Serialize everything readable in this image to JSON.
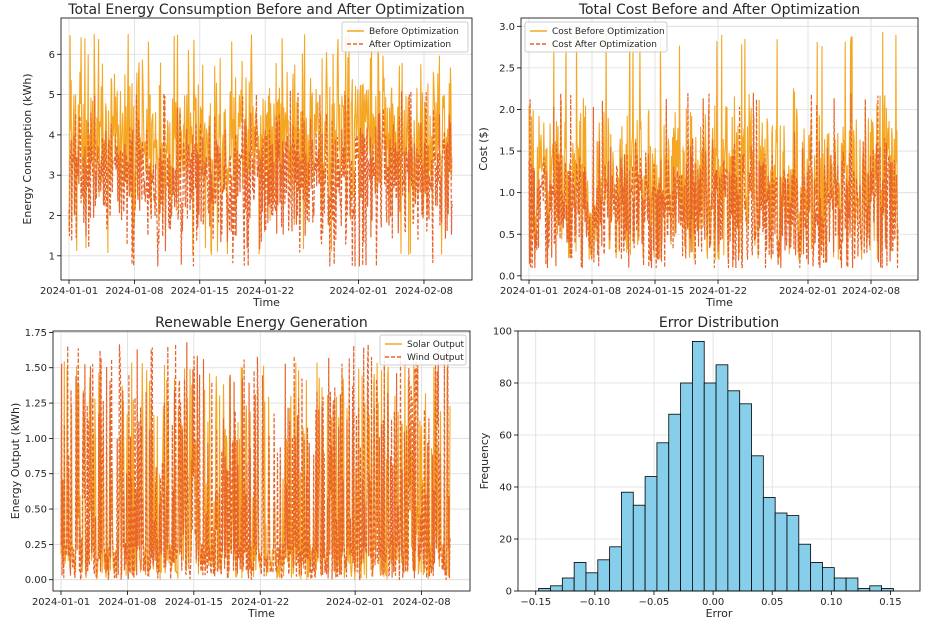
{
  "chart_data": [
    {
      "type": "line",
      "title": "Total Energy Consumption Before and After Optimization",
      "xlabel": "Time",
      "ylabel": "Energy Consumption (kWh)",
      "x_range": [
        "2024-01-01",
        "2024-02-11"
      ],
      "ylim": [
        0.4,
        6.9
      ],
      "x_ticks": [
        "2024-01-01",
        "2024-01-08",
        "2024-01-15",
        "2024-01-22",
        "2024-02-01",
        "2024-02-08"
      ],
      "y_ticks": [
        1,
        2,
        3,
        4,
        5,
        6
      ],
      "grid": true,
      "legend_position": "top-right",
      "series": [
        {
          "name": "Before Optimization",
          "color": "#f5a623",
          "style": "solid",
          "mean": 3.8,
          "min": 1.0,
          "max": 6.5
        },
        {
          "name": "After Optimization",
          "color": "#e8642d",
          "style": "dashed",
          "mean": 3.3,
          "min": 0.75,
          "max": 5.8
        }
      ]
    },
    {
      "type": "line",
      "title": "Total Cost Before and After Optimization",
      "xlabel": "Time",
      "ylabel": "Cost ($)",
      "x_range": [
        "2024-01-01",
        "2024-02-11"
      ],
      "ylim": [
        -0.05,
        3.1
      ],
      "x_ticks": [
        "2024-01-01",
        "2024-01-08",
        "2024-01-15",
        "2024-01-22",
        "2024-02-01",
        "2024-02-08"
      ],
      "y_ticks": [
        0.0,
        0.5,
        1.0,
        1.5,
        2.0,
        2.5,
        3.0
      ],
      "grid": true,
      "legend_position": "top-left",
      "series": [
        {
          "name": "Cost Before Optimization",
          "color": "#f5a623",
          "style": "solid",
          "mean": 1.1,
          "min": 0.2,
          "max": 2.95
        },
        {
          "name": "Cost After Optimization",
          "color": "#e8642d",
          "style": "dashed",
          "mean": 0.95,
          "min": 0.1,
          "max": 2.5
        }
      ]
    },
    {
      "type": "line",
      "title": "Renewable Energy Generation",
      "xlabel": "Time",
      "ylabel": "Energy Output (kWh)",
      "x_range": [
        "2024-01-01",
        "2024-02-11"
      ],
      "ylim": [
        -0.08,
        1.76
      ],
      "x_ticks": [
        "2024-01-01",
        "2024-01-08",
        "2024-01-15",
        "2024-01-22",
        "2024-02-01",
        "2024-02-08"
      ],
      "y_ticks": [
        0.0,
        0.25,
        0.5,
        0.75,
        1.0,
        1.25,
        1.5,
        1.75
      ],
      "grid": true,
      "legend_position": "top-right",
      "series": [
        {
          "name": "Solar Output",
          "color": "#f5a623",
          "style": "solid",
          "min": 0.0,
          "max": 1.55
        },
        {
          "name": "Wind Output",
          "color": "#e8642d",
          "style": "dashed",
          "min": 0.0,
          "max": 1.68
        }
      ]
    },
    {
      "type": "bar",
      "title": "Error Distribution",
      "xlabel": "Error",
      "ylabel": "Frequency",
      "xlim": [
        -0.165,
        0.175
      ],
      "ylim": [
        0,
        100
      ],
      "x_ticks": [
        -0.15,
        -0.1,
        -0.05,
        0.0,
        0.05,
        0.1,
        0.15
      ],
      "y_ticks": [
        0,
        20,
        40,
        60,
        80,
        100
      ],
      "grid": true,
      "color": "#87ceeb",
      "edge_color": "#000000",
      "bin_start": -0.1475,
      "bin_width": 0.01,
      "values": [
        1,
        2,
        5,
        11,
        7,
        12,
        17,
        38,
        33,
        44,
        57,
        68,
        80,
        96,
        80,
        87,
        77,
        72,
        52,
        36,
        30,
        29,
        18,
        11,
        9,
        5,
        5,
        1,
        2,
        1
      ]
    }
  ]
}
